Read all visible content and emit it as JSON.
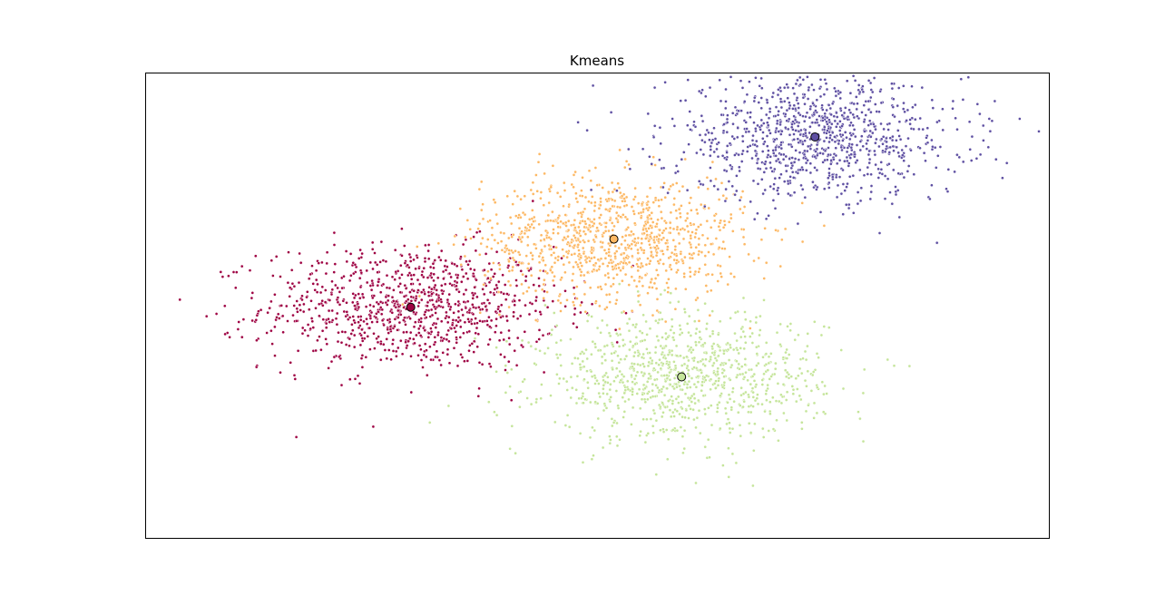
{
  "chart_data": {
    "type": "scatter",
    "title": "Kmeans",
    "xlabel": "",
    "ylabel": "",
    "xlim": [
      -2.2,
      2.2
    ],
    "ylim": [
      -1.6,
      1.4
    ],
    "grid": false,
    "ticks_visible": false,
    "clusters": [
      {
        "color": "#9e0142",
        "centroid": [
          -0.91,
          -0.11
        ],
        "spread": [
          0.36,
          0.2
        ],
        "n_points": 1000
      },
      {
        "color": "#fdb863",
        "centroid": [
          0.08,
          0.33
        ],
        "spread": [
          0.32,
          0.2
        ],
        "n_points": 1000
      },
      {
        "color": "#5e4fa2",
        "centroid": [
          1.06,
          0.99
        ],
        "spread": [
          0.36,
          0.2
        ],
        "n_points": 1000
      },
      {
        "color": "#c5e59a",
        "centroid": [
          0.41,
          -0.56
        ],
        "spread": [
          0.34,
          0.2
        ],
        "n_points": 1000
      }
    ]
  }
}
